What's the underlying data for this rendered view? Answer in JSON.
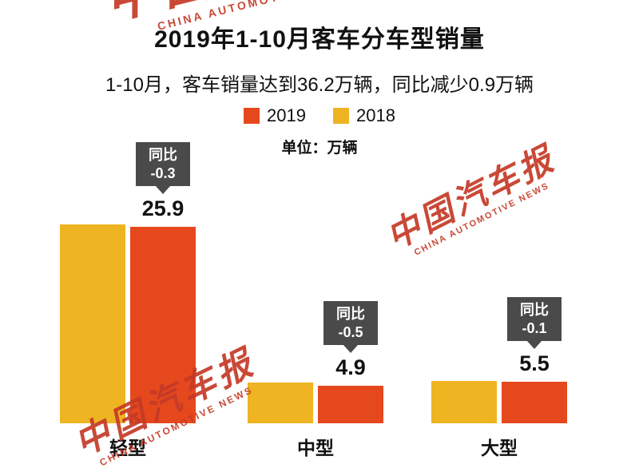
{
  "header": {
    "title": "2019年1-10月客车分车型销量",
    "subtitle": "1-10月，客车销量达到36.2万辆，同比减少0.9万辆",
    "unit_label": "单位：万辆"
  },
  "watermark": {
    "text_cn": "中国汽车报",
    "text_en": "CHINA AUTOMOTIVE NEWS",
    "color": "#c53a27"
  },
  "chart_data": {
    "type": "bar",
    "title": "2019年1-10月客车分车型销量",
    "subtitle": "1-10月，客车销量达到36.2万辆，同比减少0.9万辆",
    "unit": "万辆",
    "categories": [
      "轻型",
      "中型",
      "大型"
    ],
    "series": [
      {
        "name": "2019",
        "color": "#e6481e",
        "values": [
          25.9,
          4.9,
          5.5
        ]
      },
      {
        "name": "2018",
        "color": "#eeb421",
        "values": [
          26.2,
          5.4,
          5.6
        ]
      }
    ],
    "yoy": [
      {
        "line1": "同比",
        "line2": "-0.3"
      },
      {
        "line1": "同比",
        "line2": "-0.5"
      },
      {
        "line1": "同比",
        "line2": "-0.1"
      }
    ],
    "legend_position": "top",
    "grid": false,
    "ylim": [
      0,
      28
    ]
  }
}
